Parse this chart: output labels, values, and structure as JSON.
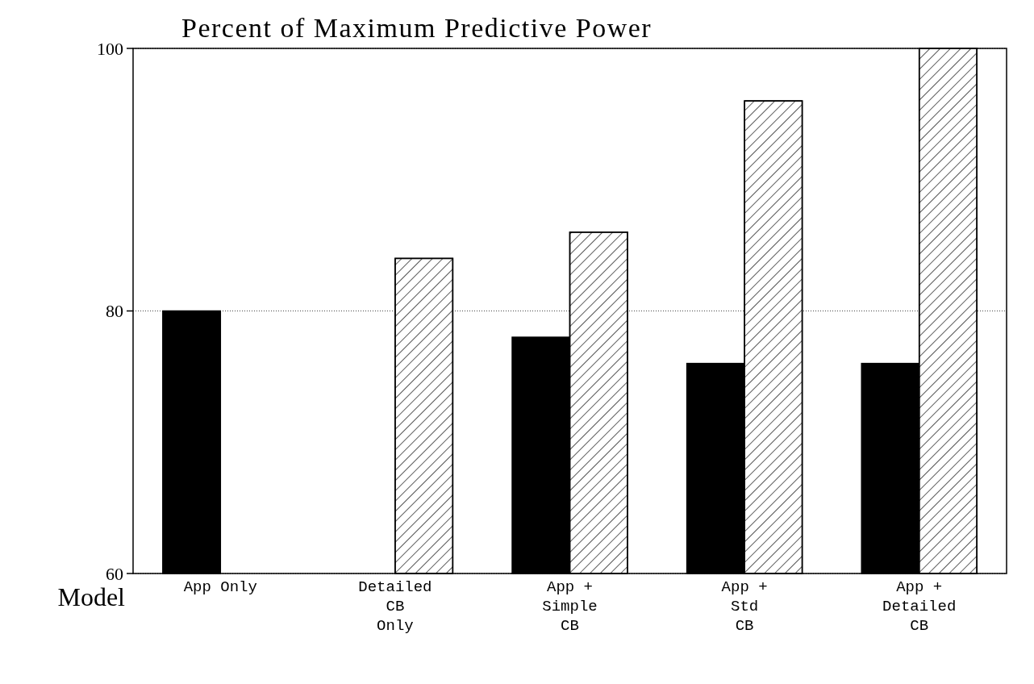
{
  "chart_data": {
    "type": "bar",
    "title": "Percent of Maximum Predictive Power",
    "xlabel": "Model",
    "categories": [
      "App Only",
      "Detailed\nCB\nOnly",
      "App +\nSimple\nCB",
      "App +\nStd\nCB",
      "App +\nDetailed\nCB"
    ],
    "series": [
      {
        "color": "#000000",
        "values": [
          80,
          null,
          78,
          76,
          76
        ]
      },
      {
        "color": "#ffffff",
        "values": [
          null,
          84,
          86,
          96,
          100
        ]
      }
    ],
    "ylim": [
      60,
      100
    ],
    "yticks": [
      60,
      80,
      100
    ],
    "grid": "y"
  }
}
